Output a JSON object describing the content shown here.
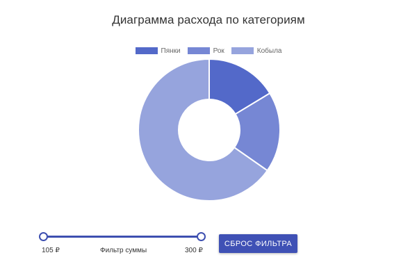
{
  "chart_data": {
    "type": "pie",
    "variant": "doughnut",
    "title": "Диаграмма расхода по категориям",
    "legend_position": "top",
    "categories": [
      "Пянки",
      "Рок",
      "Кобыла"
    ],
    "values": [
      16,
      18,
      64
    ],
    "colors": [
      "#5369c9",
      "#7687d4",
      "#96a4dd"
    ]
  },
  "filter": {
    "label": "Фильтр суммы",
    "min_label": "105 ₽",
    "max_label": "300 ₽",
    "min_value": 105,
    "max_value": 300
  },
  "controls": {
    "reset_label": "СБРОС ФИЛЬТРА"
  }
}
